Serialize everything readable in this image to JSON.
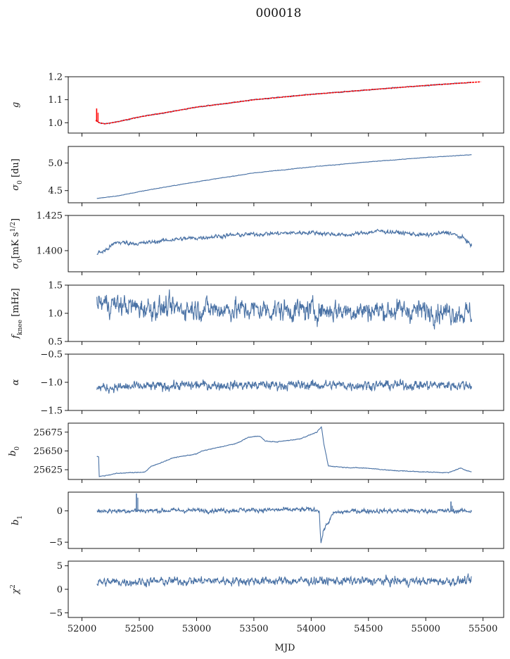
{
  "title": "000018",
  "chart_data": {
    "type": "line",
    "shared_x": {
      "label": "MJD",
      "lim": [
        51880,
        55680
      ],
      "ticks": [
        52000,
        52500,
        53000,
        53500,
        54000,
        54500,
        55000,
        55500
      ],
      "tick_labels": [
        "52000",
        "52500",
        "53000",
        "53500",
        "54000",
        "54500",
        "55000",
        "55500"
      ]
    },
    "line_color": "#4a72a5",
    "fit_color": "#ff0000",
    "panels": [
      {
        "key": "g",
        "ylabel": "g",
        "ylabel_sub": "",
        "ylabel_sup": "",
        "ylim": [
          0.955,
          1.2
        ],
        "yticks": [
          1.0,
          1.1,
          1.2
        ],
        "ytick_labels": [
          "1.0",
          "1.1",
          "1.2"
        ],
        "series": [
          {
            "kind": "curve",
            "noise": 0.002,
            "points": [
              [
                52120,
                1.01
              ],
              [
                52150,
                1.0
              ],
              [
                52200,
                0.995
              ],
              [
                52300,
                1.003
              ],
              [
                52500,
                1.025
              ],
              [
                52800,
                1.05
              ],
              [
                53000,
                1.068
              ],
              [
                53200,
                1.08
              ],
              [
                53500,
                1.1
              ],
              [
                54000,
                1.123
              ],
              [
                54500,
                1.143
              ],
              [
                55000,
                1.162
              ],
              [
                55400,
                1.176
              ]
            ]
          },
          {
            "kind": "fit",
            "color": "fit",
            "points": [
              [
                52120,
                1.01
              ],
              [
                52150,
                1.0
              ],
              [
                52200,
                0.995
              ],
              [
                52300,
                1.003
              ],
              [
                52500,
                1.025
              ],
              [
                52800,
                1.05
              ],
              [
                53000,
                1.068
              ],
              [
                53200,
                1.08
              ],
              [
                53500,
                1.1
              ],
              [
                54000,
                1.123
              ],
              [
                54500,
                1.143
              ],
              [
                55000,
                1.162
              ],
              [
                55480,
                1.178
              ]
            ]
          },
          {
            "kind": "spike",
            "color": "fit",
            "x": 52128,
            "y0": 1.005,
            "y1": 1.062
          }
        ]
      },
      {
        "key": "sigma0",
        "ylabel": "σ",
        "ylabel_sub": "0",
        "ylabel_sup": "",
        "ylabel_rest": " [du]",
        "ylim": [
          4.28,
          5.3
        ],
        "yticks": [
          4.5,
          5.0
        ],
        "ytick_labels": [
          "4.5",
          "5.0"
        ],
        "series": [
          {
            "kind": "curve",
            "noise": 0.004,
            "points": [
              [
                52130,
                4.36
              ],
              [
                52300,
                4.4
              ],
              [
                52600,
                4.52
              ],
              [
                53000,
                4.66
              ],
              [
                53500,
                4.82
              ],
              [
                54000,
                4.93
              ],
              [
                54500,
                5.02
              ],
              [
                55000,
                5.1
              ],
              [
                55400,
                5.15
              ]
            ]
          }
        ]
      },
      {
        "key": "sigma0_nu",
        "ylabel": "σ",
        "ylabel_sub": "0",
        "ylabel_sup": "1/2",
        "ylabel_rest": "[mK s",
        "ylim": [
          1.385,
          1.425
        ],
        "yticks": [
          1.4,
          1.425
        ],
        "ytick_labels": [
          "1.400",
          "1.425"
        ],
        "series": [
          {
            "kind": "curve",
            "noise": 0.0012,
            "points": [
              [
                52130,
                1.398
              ],
              [
                52200,
                1.4
              ],
              [
                52300,
                1.406
              ],
              [
                52500,
                1.405
              ],
              [
                52800,
                1.408
              ],
              [
                53000,
                1.409
              ],
              [
                53300,
                1.411
              ],
              [
                53600,
                1.412
              ],
              [
                54000,
                1.413
              ],
              [
                54300,
                1.411
              ],
              [
                54600,
                1.414
              ],
              [
                55000,
                1.411
              ],
              [
                55200,
                1.413
              ],
              [
                55350,
                1.408
              ],
              [
                55400,
                1.403
              ]
            ]
          }
        ]
      },
      {
        "key": "fknee",
        "ylabel": "f",
        "ylabel_sub": "knee",
        "ylabel_sup": "",
        "ylabel_rest": " [mHz]",
        "ylim": [
          0.5,
          1.5
        ],
        "yticks": [
          0.5,
          1.0,
          1.5
        ],
        "ytick_labels": [
          "0.5",
          "1.0",
          "1.5"
        ],
        "series": [
          {
            "kind": "curve",
            "noise": 0.16,
            "points": [
              [
                52130,
                1.2
              ],
              [
                52500,
                1.1
              ],
              [
                53000,
                1.08
              ],
              [
                54000,
                1.05
              ],
              [
                55000,
                1.05
              ],
              [
                55400,
                1.0
              ]
            ]
          }
        ]
      },
      {
        "key": "alpha",
        "ylabel": "α",
        "ylabel_sub": "",
        "ylabel_sup": "",
        "ylim": [
          -1.5,
          -0.5
        ],
        "yticks": [
          -1.5,
          -1.0,
          -0.5
        ],
        "ytick_labels": [
          "−1.5",
          "−1.0",
          "−0.5"
        ],
        "series": [
          {
            "kind": "curve",
            "noise": 0.07,
            "points": [
              [
                52130,
                -1.1
              ],
              [
                53000,
                -1.05
              ],
              [
                54000,
                -1.05
              ],
              [
                55000,
                -1.05
              ],
              [
                55400,
                -1.05
              ]
            ]
          }
        ]
      },
      {
        "key": "b0",
        "ylabel": "b",
        "ylabel_sub": "0",
        "ylabel_sup": "",
        "ylim": [
          25612,
          25687
        ],
        "yticks": [
          25625,
          25650,
          25675
        ],
        "ytick_labels": [
          "25625",
          "25650",
          "25675"
        ],
        "series": [
          {
            "kind": "curve",
            "noise": 0.4,
            "points": [
              [
                52130,
                25643
              ],
              [
                52145,
                25642
              ],
              [
                52150,
                25616
              ],
              [
                52200,
                25617
              ],
              [
                52300,
                25620
              ],
              [
                52400,
                25621
              ],
              [
                52450,
                25621
              ],
              [
                52550,
                25622
              ],
              [
                52600,
                25629
              ],
              [
                52700,
                25635
              ],
              [
                52800,
                25641
              ],
              [
                53000,
                25646
              ],
              [
                53050,
                25650
              ],
              [
                53200,
                25655
              ],
              [
                53350,
                25660
              ],
              [
                53450,
                25668
              ],
              [
                53550,
                25670
              ],
              [
                53600,
                25663
              ],
              [
                53700,
                25662
              ],
              [
                53900,
                25666
              ],
              [
                54050,
                25675
              ],
              [
                54090,
                25682
              ],
              [
                54110,
                25660
              ],
              [
                54150,
                25630
              ],
              [
                54300,
                25628
              ],
              [
                54500,
                25627
              ],
              [
                54700,
                25624
              ],
              [
                55000,
                25622
              ],
              [
                55200,
                25621
              ],
              [
                55300,
                25627
              ],
              [
                55400,
                25622
              ]
            ]
          }
        ]
      },
      {
        "key": "b1",
        "ylabel": "b",
        "ylabel_sub": "1",
        "ylabel_sup": "",
        "ylim": [
          -6,
          3
        ],
        "yticks": [
          -5,
          0
        ],
        "ytick_labels": [
          "−5",
          "0"
        ],
        "series": [
          {
            "kind": "curve",
            "noise": 0.3,
            "points": [
              [
                52130,
                0
              ],
              [
                54070,
                0.2
              ],
              [
                54085,
                -5.2
              ],
              [
                54110,
                -3
              ],
              [
                54200,
                -0.3
              ],
              [
                54400,
                0
              ],
              [
                55400,
                0
              ]
            ]
          },
          {
            "kind": "spike",
            "color": "line",
            "x": 52475,
            "y0": 0,
            "y1": 2.8
          },
          {
            "kind": "spike",
            "color": "line",
            "x": 55220,
            "y0": 0,
            "y1": 1.5
          }
        ]
      },
      {
        "key": "chi2",
        "ylabel": "χ",
        "ylabel_sub": "",
        "ylabel_sup": "2",
        "ylim": [
          -6,
          6
        ],
        "yticks": [
          -5,
          0,
          5
        ],
        "ytick_labels": [
          "−5",
          "0",
          "5"
        ],
        "series": [
          {
            "kind": "curve",
            "noise": 0.75,
            "points": [
              [
                52130,
                1.5
              ],
              [
                53000,
                1.8
              ],
              [
                54000,
                1.8
              ],
              [
                55000,
                1.7
              ],
              [
                55400,
                1.8
              ]
            ]
          }
        ]
      }
    ]
  }
}
